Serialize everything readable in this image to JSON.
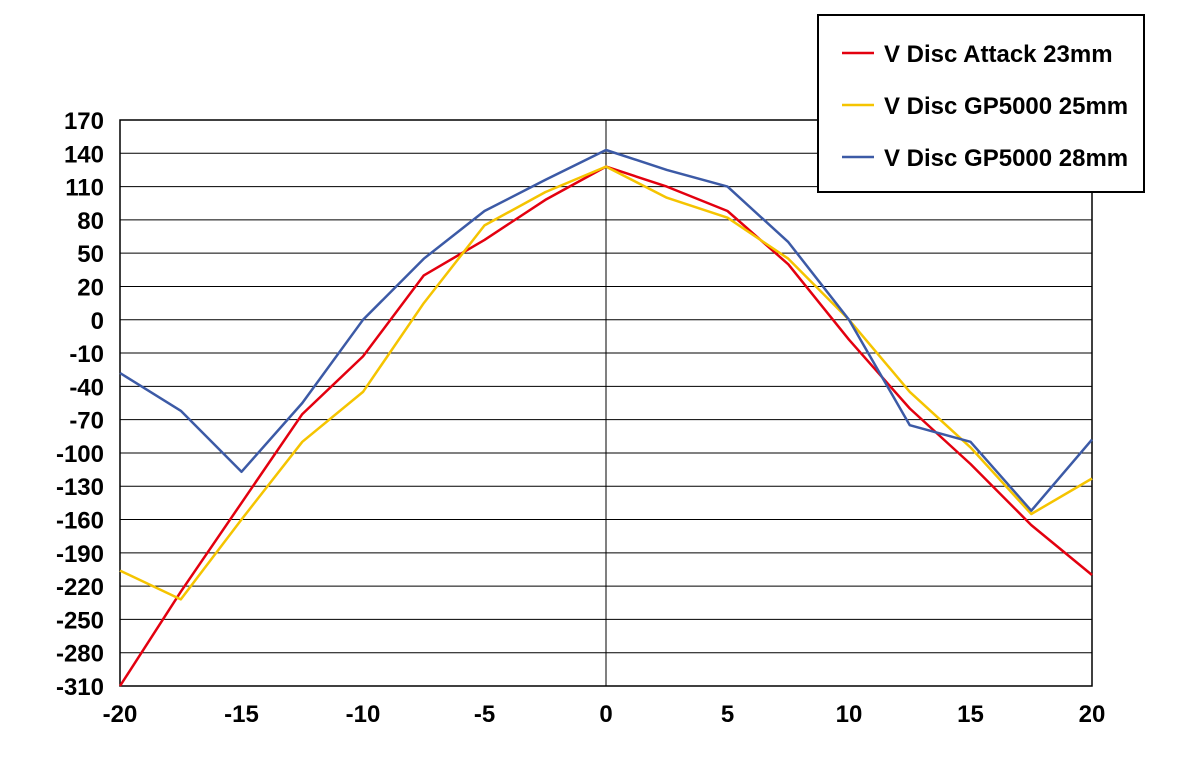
{
  "chart_data": {
    "type": "line",
    "title": "",
    "xlabel": "",
    "ylabel": "",
    "xlim": [
      -20,
      20
    ],
    "ylim": [
      -310,
      170
    ],
    "x_ticks": [
      -20,
      -15,
      -10,
      -5,
      0,
      5,
      10,
      15,
      20
    ],
    "y_ticks": [
      170,
      140,
      110,
      80,
      50,
      20,
      0,
      -10,
      -40,
      -70,
      -100,
      -130,
      -160,
      -190,
      -220,
      -250,
      -280,
      -310
    ],
    "grid": true,
    "legend_position": "top-right",
    "series": [
      {
        "name": "V Disc Attack 23mm",
        "color": "#e3000f",
        "x": [
          -20,
          -17.5,
          -15,
          -12.5,
          -10,
          -7.5,
          -5,
          -2.5,
          0,
          2.5,
          5,
          7.5,
          10,
          12.5,
          15,
          17.5,
          20
        ],
        "y": [
          -310,
          -225,
          -145,
          -65,
          -13,
          30,
          62,
          98,
          128,
          110,
          88,
          40,
          -6,
          -60,
          -110,
          -165,
          -210
        ]
      },
      {
        "name": "V Disc GP5000 25mm",
        "color": "#f5c400",
        "x": [
          -20,
          -17.5,
          -15,
          -12.5,
          -10,
          -7.5,
          -5,
          -2.5,
          0,
          2.5,
          5,
          7.5,
          10,
          12.5,
          15,
          17.5,
          20
        ],
        "y": [
          -206,
          -232,
          -160,
          -90,
          -45,
          10,
          75,
          105,
          128,
          100,
          82,
          45,
          0,
          -45,
          -95,
          -155,
          -123
        ]
      },
      {
        "name": "V Disc GP5000 28mm",
        "color": "#3c5aa6",
        "x": [
          -20,
          -17.5,
          -15,
          -12.5,
          -10,
          -7.5,
          -5,
          -2.5,
          0,
          2.5,
          5,
          7.5,
          10,
          12.5,
          15,
          17.5,
          20
        ],
        "y": [
          -28,
          -62,
          -117,
          -55,
          0,
          45,
          88,
          116,
          143,
          125,
          110,
          60,
          0,
          -75,
          -90,
          -152,
          -88
        ]
      }
    ]
  }
}
